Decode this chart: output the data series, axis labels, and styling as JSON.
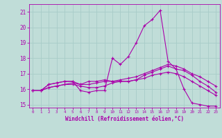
{
  "xlabel": "Windchill (Refroidissement éolien,°C)",
  "xlim": [
    -0.5,
    23.5
  ],
  "ylim": [
    14.8,
    21.5
  ],
  "yticks": [
    15,
    16,
    17,
    18,
    19,
    20,
    21
  ],
  "xticks": [
    0,
    1,
    2,
    3,
    4,
    5,
    6,
    7,
    8,
    9,
    10,
    11,
    12,
    13,
    14,
    15,
    16,
    17,
    18,
    19,
    20,
    21,
    22,
    23
  ],
  "bg_color": "#c0ddd8",
  "grid_color": "#a8ccc8",
  "line_color": "#aa00aa",
  "series": [
    [
      15.9,
      15.9,
      16.3,
      16.4,
      16.5,
      16.5,
      15.9,
      15.8,
      15.9,
      15.9,
      18.0,
      17.6,
      18.1,
      19.0,
      20.1,
      20.5,
      21.1,
      17.8,
      17.3,
      16.0,
      15.1,
      15.0,
      14.9,
      14.9
    ],
    [
      15.9,
      15.9,
      16.3,
      16.4,
      16.5,
      16.5,
      16.3,
      16.5,
      16.5,
      16.6,
      16.5,
      16.5,
      16.5,
      16.6,
      16.9,
      17.1,
      17.3,
      17.5,
      17.3,
      17.2,
      16.9,
      16.5,
      16.2,
      15.8
    ],
    [
      15.9,
      15.9,
      16.1,
      16.2,
      16.3,
      16.4,
      16.3,
      16.3,
      16.4,
      16.5,
      16.5,
      16.6,
      16.7,
      16.8,
      17.0,
      17.2,
      17.4,
      17.6,
      17.5,
      17.3,
      17.0,
      16.8,
      16.5,
      16.2
    ],
    [
      15.9,
      15.9,
      16.1,
      16.2,
      16.3,
      16.3,
      16.2,
      16.1,
      16.1,
      16.2,
      16.4,
      16.5,
      16.5,
      16.6,
      16.7,
      16.9,
      17.0,
      17.1,
      17.0,
      16.8,
      16.5,
      16.2,
      15.9,
      15.6
    ]
  ]
}
